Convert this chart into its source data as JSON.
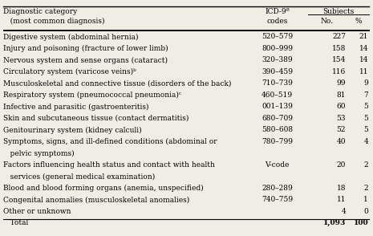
{
  "title_line1": "Diagnostic category",
  "title_line2": "   (most common diagnosis)",
  "icd_header1": "ICD-9ª",
  "icd_header2": "codes",
  "subjects_header": "Subjects",
  "no_header": "No.",
  "pct_header": "%",
  "rows": [
    [
      "Digestive system (abdominal hernia)",
      "520–579",
      "227",
      "21"
    ],
    [
      "Injury and poisoning (fracture of lower limb)",
      "800–999",
      "158",
      "14"
    ],
    [
      "Nervous system and sense organs (cataract)",
      "320–389",
      "154",
      "14"
    ],
    [
      "Circulatory system (varicose veins)ᵇ",
      "390–459",
      "116",
      "11"
    ],
    [
      "Musculoskeletal and connective tissue (disorders of the back)",
      "710–739",
      "99",
      "9"
    ],
    [
      "Respiratory system (pneumococcal pneumonia)ᶜ",
      "460–519",
      "81",
      "7"
    ],
    [
      "Infective and parasitic (gastroenteritis)",
      "001–139",
      "60",
      "5"
    ],
    [
      "Skin and subcutaneous tissue (contact dermatitis)",
      "680–709",
      "53",
      "5"
    ],
    [
      "Genitourinary system (kidney calculi)",
      "580–608",
      "52",
      "5"
    ],
    [
      "Symptoms, signs, and ill-defined conditions (abdominal or",
      "780–799",
      "40",
      "4"
    ],
    [
      "   pelvic symptoms)",
      "",
      "",
      ""
    ],
    [
      "Factors influencing health status and contact with health",
      "V-code",
      "20",
      "2"
    ],
    [
      "   services (general medical examination)",
      "",
      "",
      ""
    ],
    [
      "Blood and blood forming organs (anemia, unspecified)",
      "280–289",
      "18",
      "2"
    ],
    [
      "Congenital anomalies (musculoskeletal anomalies)",
      "740–759",
      "11",
      "1"
    ],
    [
      "Other or unknown",
      "",
      "4",
      "0"
    ],
    [
      "   Total",
      "",
      "1,093",
      "100"
    ]
  ],
  "row_is_continuation": [
    false,
    false,
    false,
    false,
    false,
    false,
    false,
    false,
    false,
    false,
    true,
    false,
    true,
    false,
    false,
    false,
    false
  ],
  "row_is_total": [
    false,
    false,
    false,
    false,
    false,
    false,
    false,
    false,
    false,
    false,
    false,
    false,
    false,
    false,
    false,
    false,
    true
  ],
  "bg_color": "#f0ede4",
  "text_color": "#000000",
  "font_size": 6.5
}
